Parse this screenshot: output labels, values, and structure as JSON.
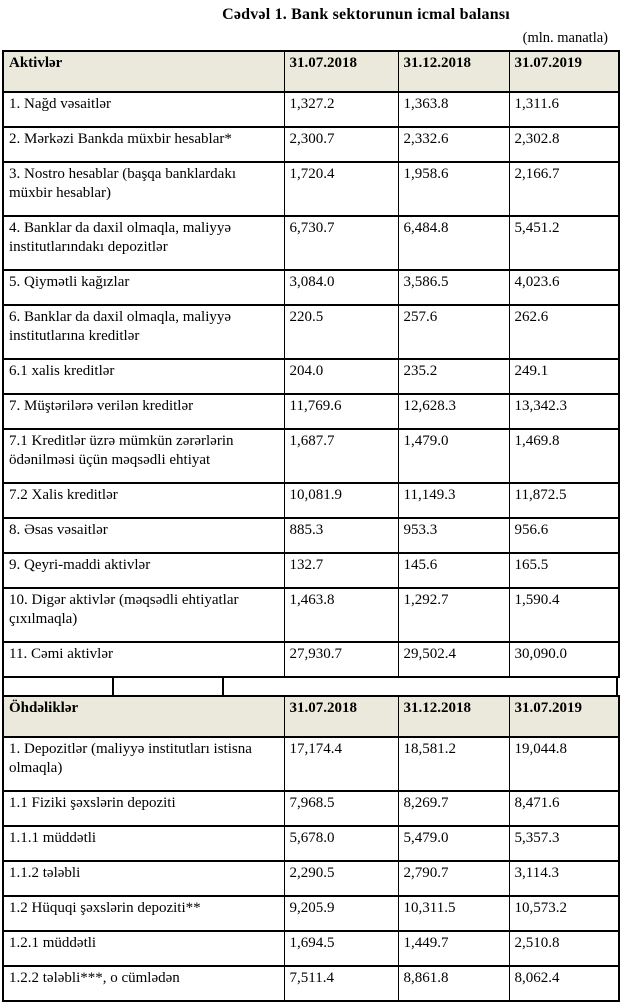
{
  "title": "Cədvəl 1. Bank sektorunun icmal balansı",
  "unit_note": "(mln. manatla)",
  "colors": {
    "header_bg": "#ebe9db",
    "border": "#000000",
    "text": "#000000",
    "page_bg": "#ffffff"
  },
  "assets_table": {
    "header": [
      "Aktivlər",
      "31.07.2018",
      "31.12.2018",
      "31.07.2019"
    ],
    "rows": [
      [
        "1. Nağd vəsaitlər",
        "1,327.2",
        "1,363.8",
        "1,311.6"
      ],
      [
        "2. Mərkəzi Bankda müxbir hesablar*",
        "2,300.7",
        "2,332.6",
        "2,302.8"
      ],
      [
        "3. Nostro hesablar (başqa banklardakı müxbir hesablar)",
        "1,720.4",
        "1,958.6",
        "2,166.7"
      ],
      [
        "4. Banklar da daxil olmaqla, maliyyə institutlarındakı depozitlər",
        "6,730.7",
        "6,484.8",
        "5,451.2"
      ],
      [
        "5. Qiymətli kağızlar",
        "3,084.0",
        "3,586.5",
        "4,023.6"
      ],
      [
        "6. Banklar da daxil olmaqla, maliyyə institutlarına kreditlər",
        "220.5",
        "257.6",
        "262.6"
      ],
      [
        "6.1 xalis kreditlər",
        "204.0",
        "235.2",
        "249.1"
      ],
      [
        "7. Müştərilərə verilən kreditlər",
        "11,769.6",
        "12,628.3",
        "13,342.3"
      ],
      [
        "7.1 Kreditlər üzrə mümkün zərərlərin ödənilməsi üçün məqsədli ehtiyat",
        "1,687.7",
        "1,479.0",
        "1,469.8"
      ],
      [
        "7.2 Xalis kreditlər",
        "10,081.9",
        "11,149.3",
        "11,872.5"
      ],
      [
        "8. Əsas vəsaitlər",
        "885.3",
        "953.3",
        "956.6"
      ],
      [
        "9. Qeyri-maddi aktivlər",
        "132.7",
        "145.6",
        "165.5"
      ],
      [
        "10. Digər aktivlər (məqsədli ehtiyatlar çıxılmaqla)",
        "1,463.8",
        "1,292.7",
        "1,590.4"
      ],
      [
        "11. Cəmi aktivlər",
        "27,930.7",
        "29,502.4",
        "30,090.0"
      ]
    ]
  },
  "liabilities_table": {
    "header": [
      "Öhdəliklər",
      "31.07.2018",
      "31.12.2018",
      "31.07.2019"
    ],
    "rows": [
      [
        "1. Depozitlər (maliyyə institutları istisna olmaqla)",
        "17,174.4",
        "18,581.2",
        "19,044.8"
      ],
      [
        "1.1 Fiziki şəxslərin depoziti",
        "7,968.5",
        "8,269.7",
        "8,471.6"
      ],
      [
        "1.1.1 müddətli",
        "5,678.0",
        "5,479.0",
        "5,357.3"
      ],
      [
        "1.1.2 tələbli",
        "2,290.5",
        "2,790.7",
        "3,114.3"
      ],
      [
        "1.2 Hüquqi şəxslərin depoziti**",
        "9,205.9",
        "10,311.5",
        "10,573.2"
      ],
      [
        "1.2.1 müddətli",
        "1,694.5",
        "1,449.7",
        "2,510.8"
      ],
      [
        "1.2.2 tələbli***, o cümlədən",
        "7,511.4",
        "8,861.8",
        "8,062.4"
      ]
    ]
  }
}
